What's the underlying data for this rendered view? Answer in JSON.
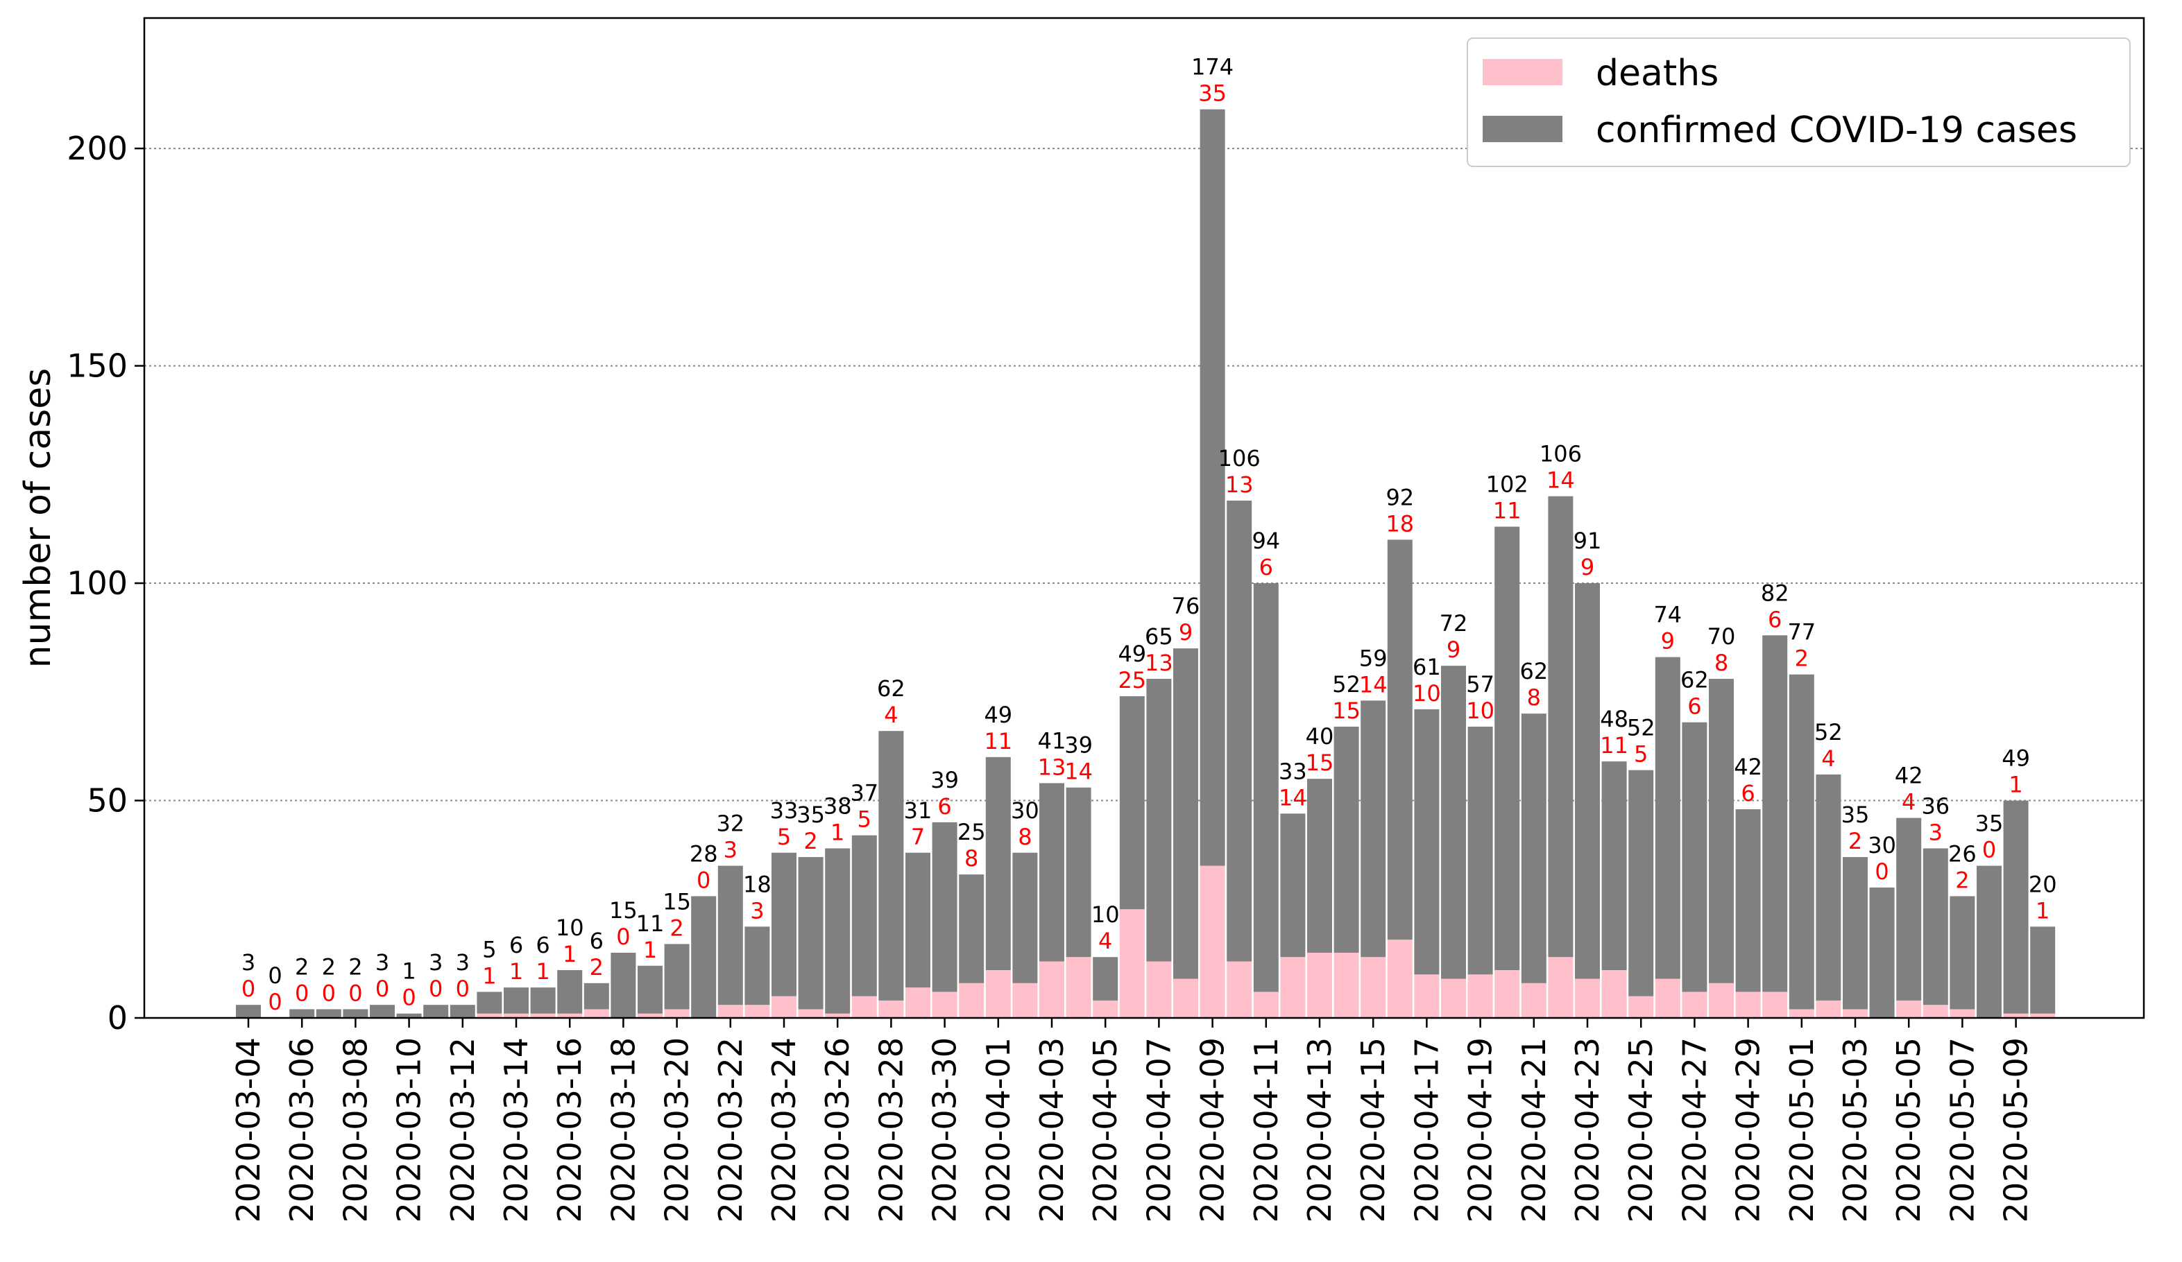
{
  "chart_data": {
    "type": "bar",
    "stacked": true,
    "title": "",
    "xlabel": "",
    "ylabel": "number of cases",
    "ylim": [
      0,
      230
    ],
    "yticks": [
      0,
      50,
      100,
      150,
      200
    ],
    "grid": "horizontal dotted",
    "legend_position": "top-right",
    "colors": {
      "deaths": "#ffc0cb",
      "cases": "#808080",
      "deaths_label": "#ff0000",
      "cases_label": "#000000"
    },
    "categories": [
      "2020-03-04",
      "2020-03-05",
      "2020-03-06",
      "2020-03-07",
      "2020-03-08",
      "2020-03-09",
      "2020-03-10",
      "2020-03-11",
      "2020-03-12",
      "2020-03-13",
      "2020-03-14",
      "2020-03-15",
      "2020-03-16",
      "2020-03-17",
      "2020-03-18",
      "2020-03-19",
      "2020-03-20",
      "2020-03-21",
      "2020-03-22",
      "2020-03-23",
      "2020-03-24",
      "2020-03-25",
      "2020-03-26",
      "2020-03-27",
      "2020-03-28",
      "2020-03-29",
      "2020-03-30",
      "2020-03-31",
      "2020-04-01",
      "2020-04-02",
      "2020-04-03",
      "2020-04-04",
      "2020-04-05",
      "2020-04-06",
      "2020-04-07",
      "2020-04-08",
      "2020-04-09",
      "2020-04-10",
      "2020-04-11",
      "2020-04-12",
      "2020-04-13",
      "2020-04-14",
      "2020-04-15",
      "2020-04-16",
      "2020-04-17",
      "2020-04-18",
      "2020-04-19",
      "2020-04-20",
      "2020-04-21",
      "2020-04-22",
      "2020-04-23",
      "2020-04-24",
      "2020-04-25",
      "2020-04-26",
      "2020-04-27",
      "2020-04-28",
      "2020-04-29",
      "2020-04-30",
      "2020-05-01",
      "2020-05-02",
      "2020-05-03",
      "2020-05-04",
      "2020-05-05",
      "2020-05-06",
      "2020-05-07",
      "2020-05-08",
      "2020-05-09",
      "2020-05-10"
    ],
    "x_tick_labels": [
      "2020-03-04",
      "2020-03-06",
      "2020-03-08",
      "2020-03-10",
      "2020-03-12",
      "2020-03-14",
      "2020-03-16",
      "2020-03-18",
      "2020-03-20",
      "2020-03-22",
      "2020-03-24",
      "2020-03-26",
      "2020-03-28",
      "2020-03-30",
      "2020-04-01",
      "2020-04-03",
      "2020-04-05",
      "2020-04-07",
      "2020-04-09",
      "2020-04-11",
      "2020-04-13",
      "2020-04-15",
      "2020-04-17",
      "2020-04-19",
      "2020-04-21",
      "2020-04-23",
      "2020-04-25",
      "2020-04-27",
      "2020-04-29",
      "2020-05-01",
      "2020-05-03",
      "2020-05-05",
      "2020-05-07",
      "2020-05-09"
    ],
    "series": [
      {
        "name": "deaths",
        "values": [
          0,
          0,
          0,
          0,
          0,
          0,
          0,
          0,
          0,
          1,
          1,
          1,
          1,
          2,
          0,
          1,
          2,
          0,
          3,
          3,
          5,
          2,
          1,
          5,
          4,
          7,
          6,
          8,
          11,
          8,
          13,
          14,
          4,
          25,
          13,
          9,
          35,
          13,
          6,
          14,
          15,
          15,
          14,
          18,
          10,
          9,
          10,
          11,
          8,
          14,
          9,
          11,
          5,
          9,
          6,
          8,
          6,
          6,
          2,
          4,
          2,
          0,
          4,
          3,
          2,
          0,
          1,
          1
        ]
      },
      {
        "name": "confirmed COVID-19 cases",
        "values": [
          3,
          0,
          2,
          2,
          2,
          3,
          1,
          3,
          3,
          5,
          6,
          6,
          10,
          6,
          15,
          11,
          15,
          28,
          32,
          18,
          33,
          35,
          38,
          37,
          62,
          31,
          39,
          25,
          49,
          30,
          41,
          39,
          10,
          49,
          65,
          76,
          174,
          106,
          94,
          33,
          40,
          52,
          59,
          92,
          61,
          72,
          57,
          102,
          62,
          106,
          91,
          48,
          52,
          74,
          62,
          70,
          42,
          82,
          77,
          52,
          35,
          30,
          42,
          36,
          26,
          35,
          49,
          20
        ]
      }
    ]
  }
}
